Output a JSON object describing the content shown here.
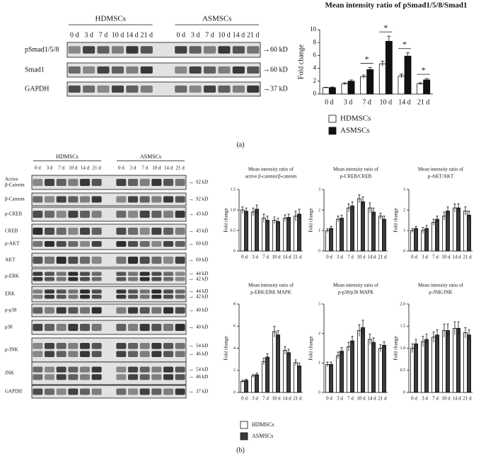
{
  "panel_labels": [
    "(a)",
    "(b)"
  ],
  "blot_a": {
    "groups": [
      "HDMSCs",
      "ASMSCs"
    ],
    "lanes": [
      "0 d",
      "3 d",
      "7 d",
      "10 d",
      "14 d",
      "21 d"
    ],
    "rows": [
      {
        "label": "pSmad1/5/8",
        "sizes": [
          "60 kD"
        ]
      },
      {
        "label": "Smad1",
        "sizes": [
          "60 kD"
        ]
      },
      {
        "label": "GAPDH",
        "sizes": [
          "37 kD"
        ]
      }
    ]
  },
  "blot_b": {
    "groups": [
      "HDMSCs",
      "ASMSCs"
    ],
    "lanes": [
      "0 d",
      "3 d",
      "7 d",
      "10 d",
      "14 d",
      "21 d"
    ],
    "rows": [
      {
        "label": [
          "Active",
          "β-Catenin"
        ],
        "sizes": [
          "92 kD"
        ]
      },
      {
        "label": "β-Catenin",
        "sizes": [
          "92 kD"
        ]
      },
      {
        "label": "p-CREB",
        "sizes": [
          "43 kD"
        ]
      },
      {
        "label": "CREB",
        "sizes": [
          "43 kD"
        ]
      },
      {
        "label": "p-AKT",
        "sizes": [
          "60 kD"
        ]
      },
      {
        "label": "AKT",
        "sizes": [
          "60 kD"
        ]
      },
      {
        "label": "p-ERK",
        "sizes": [
          "44 kD",
          "42 kD"
        ]
      },
      {
        "label": "ERK",
        "sizes": [
          "44 kD",
          "42 kD"
        ]
      },
      {
        "label": "p-p38",
        "sizes": [
          "40 kD"
        ]
      },
      {
        "label": "p38",
        "sizes": [
          "40 kD"
        ]
      },
      {
        "label": "p-JNK",
        "sizes": [
          "54 kD",
          "46 kD"
        ]
      },
      {
        "label": "JNK",
        "sizes": [
          "54 kD",
          "46 kD"
        ]
      },
      {
        "label": "GAPDH",
        "sizes": [
          "37 kD"
        ]
      }
    ]
  },
  "legend_b": [
    {
      "name": "HDMSCs",
      "color": "#ffffff"
    },
    {
      "name": "ASMSCs",
      "color": "#3a3a3a"
    }
  ],
  "chart_data": [
    {
      "type": "bar",
      "title": "Mean intensity ratio of pSmad1/5/8/Smad1",
      "y_label": "Fold change",
      "categories": [
        "0 d",
        "3 d",
        "7 d",
        "10 d",
        "14 d",
        "21 d"
      ],
      "series": [
        {
          "name": "HDMSCs",
          "color": "#ffffff",
          "values": [
            1,
            1.6,
            2.7,
            4.7,
            2.8,
            1.6
          ],
          "errors": [
            0.05,
            0.15,
            0.25,
            0.4,
            0.3,
            0.15
          ]
        },
        {
          "name": "ASMSCs",
          "color": "#111111",
          "values": [
            1,
            2,
            3.8,
            8.2,
            5.9,
            2.2
          ],
          "errors": [
            0.1,
            0.2,
            0.3,
            0.8,
            0.5,
            0.2
          ]
        }
      ],
      "annotations": [
        null,
        null,
        "*",
        "*",
        "*",
        "*"
      ],
      "ylim": [
        0,
        10
      ],
      "yticks": [
        0,
        2,
        4,
        6,
        8,
        10
      ]
    },
    {
      "type": "bar",
      "title": [
        "Mean intensity ratio of",
        "active β-catenin/β-catenin"
      ],
      "y_label": "Fold change",
      "categories": [
        "0 d",
        "3 d",
        "7 d",
        "10 d",
        "14 d",
        "21 d"
      ],
      "series": [
        {
          "color": "#ffffff",
          "values": [
            1,
            0.95,
            0.8,
            0.75,
            0.8,
            0.85
          ],
          "errors": [
            0.08,
            0.1,
            0.1,
            0.08,
            0.08,
            0.12
          ]
        },
        {
          "color": "#3a3a3a",
          "values": [
            0.97,
            1.02,
            0.75,
            0.72,
            0.82,
            0.9
          ],
          "errors": [
            0.08,
            0.1,
            0.1,
            0.08,
            0.08,
            0.12
          ]
        }
      ],
      "ylim": [
        0,
        1.5
      ],
      "yticks": [
        0,
        0.5,
        {
          "value": 1,
          "label": "1.0"
        },
        1.5
      ]
    },
    {
      "type": "bar",
      "title": [
        "Mean intensity ratio of",
        "p-CREB/CREB"
      ],
      "y_label": "Fold change",
      "categories": [
        "0 d",
        "3 d",
        "7 d",
        "10 d",
        "14 d",
        "21 d"
      ],
      "series": [
        {
          "color": "#ffffff",
          "values": [
            1,
            1.55,
            2.1,
            2.55,
            2.1,
            1.7
          ],
          "errors": [
            0.1,
            0.15,
            0.2,
            0.2,
            0.25,
            0.15
          ]
        },
        {
          "color": "#3a3a3a",
          "values": [
            1.1,
            1.6,
            2.2,
            2.4,
            1.9,
            1.55
          ],
          "errors": [
            0.1,
            0.15,
            0.2,
            0.25,
            0.2,
            0.15
          ]
        }
      ],
      "ylim": [
        0,
        3
      ],
      "yticks": [
        0,
        1,
        2,
        3
      ]
    },
    {
      "type": "bar",
      "title": [
        "Mean intensity ratio of",
        "p-AKT/AKT"
      ],
      "y_label": "Fold change",
      "categories": [
        "0 d",
        "3 d",
        "7 d",
        "10 d",
        "14 d",
        "21 d"
      ],
      "series": [
        {
          "color": "#ffffff",
          "values": [
            1,
            1,
            1.4,
            1.7,
            2.1,
            1.95
          ],
          "errors": [
            0.1,
            0.15,
            0.15,
            0.2,
            0.2,
            0.2
          ]
        },
        {
          "color": "#3a3a3a",
          "values": [
            1.1,
            1.1,
            1.55,
            1.95,
            2.1,
            1.75
          ],
          "errors": [
            0.1,
            0.15,
            0.15,
            0.2,
            0.2,
            0.2
          ]
        }
      ],
      "ylim": [
        0,
        3
      ],
      "yticks": [
        0,
        1,
        2,
        3
      ]
    },
    {
      "type": "bar",
      "title": [
        "Mean intensity ratio of",
        "p-ERK/ERK MAPK"
      ],
      "y_label": "Fold change",
      "categories": [
        "0 d",
        "3 d",
        "7 d",
        "10 d",
        "14 d",
        "21 d"
      ],
      "series": [
        {
          "color": "#ffffff",
          "values": [
            1,
            1.5,
            2.8,
            5.5,
            3.8,
            2.7
          ],
          "errors": [
            0.1,
            0.15,
            0.3,
            0.5,
            0.35,
            0.25
          ]
        },
        {
          "color": "#3a3a3a",
          "values": [
            1.1,
            1.6,
            3.2,
            5.2,
            3.6,
            2.4
          ],
          "errors": [
            0.1,
            0.15,
            0.3,
            0.4,
            0.3,
            0.25
          ]
        }
      ],
      "ylim": [
        0,
        8
      ],
      "yticks": [
        0,
        2,
        4,
        6,
        8
      ]
    },
    {
      "type": "bar",
      "title": [
        "Mean intensity ratio of",
        "p-p38/p38 MAPK"
      ],
      "y_label": "Fold change",
      "categories": [
        "0 d",
        "3 d",
        "7 d",
        "10 d",
        "14 d",
        "21 d"
      ],
      "series": [
        {
          "color": "#ffffff",
          "values": [
            0.95,
            1.25,
            1.55,
            2.1,
            1.8,
            1.5
          ],
          "errors": [
            0.08,
            0.12,
            0.15,
            0.2,
            0.18,
            0.12
          ]
        },
        {
          "color": "#3a3a3a",
          "values": [
            0.95,
            1.4,
            1.75,
            2.2,
            1.7,
            1.6
          ],
          "errors": [
            0.08,
            0.12,
            0.15,
            0.25,
            0.15,
            0.12
          ]
        }
      ],
      "ylim": [
        0,
        3
      ],
      "yticks": [
        0,
        1,
        2,
        3
      ]
    },
    {
      "type": "bar",
      "title": [
        "Mean intensity ratio of",
        "p-JNK/JNK"
      ],
      "y_label": "Fold change",
      "categories": [
        "0 d",
        "3 d",
        "7 d",
        "10 d",
        "14 d",
        "21 d"
      ],
      "series": [
        {
          "color": "#ffffff",
          "values": [
            1,
            1.15,
            1.25,
            1.4,
            1.45,
            1.35
          ],
          "errors": [
            0.1,
            0.12,
            0.12,
            0.15,
            0.15,
            0.12
          ]
        },
        {
          "color": "#3a3a3a",
          "values": [
            1.1,
            1.2,
            1.3,
            1.4,
            1.45,
            1.3
          ],
          "errors": [
            0.1,
            0.12,
            0.12,
            0.15,
            0.15,
            0.12
          ]
        }
      ],
      "ylim": [
        0,
        2
      ],
      "yticks": [
        0,
        0.5,
        {
          "value": 1,
          "label": "1.0"
        },
        1.5,
        {
          "value": 2,
          "label": "2.0"
        }
      ]
    }
  ]
}
